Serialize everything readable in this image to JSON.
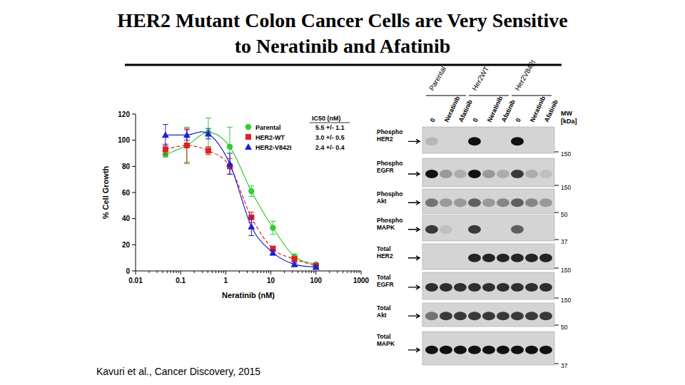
{
  "slide": {
    "title_lines": [
      "HER2 Mutant Colon Cancer Cells are Very Sensitive",
      "to Neratinib and Afatinib"
    ],
    "citation": "Kavuri et al., Cancer Discovery, 2015"
  },
  "chart_data": {
    "type": "scatter",
    "x_label": "Neratinib (nM)",
    "y_label": "% Cell Growth",
    "x": [
      0.046,
      0.137,
      0.41,
      1.23,
      3.7,
      11.1,
      33.3,
      100
    ],
    "xlim": [
      0.01,
      1000
    ],
    "ylim": [
      0,
      120
    ],
    "xticks": [
      0.01,
      0.1,
      1,
      10,
      100,
      1000
    ],
    "yticks": [
      0,
      20,
      40,
      60,
      80,
      100,
      120
    ],
    "log": "x",
    "grid": false,
    "legend": "top-right",
    "legend_header": "IC50 (nM)",
    "series": [
      {
        "name": "Parental",
        "color": "#33cc33",
        "marker": "circle",
        "line_style": "solid",
        "values": [
          89,
          96,
          106,
          95,
          61,
          33,
          11,
          5
        ],
        "errors": [
          2,
          14,
          11,
          15,
          4,
          5,
          2,
          1
        ],
        "ic50": "5.5 +/- 1.1"
      },
      {
        "name": "HER2-WT",
        "color": "#e02020",
        "marker": "square",
        "line_style": "dashed",
        "values": [
          93,
          96,
          92,
          80,
          41,
          17,
          9,
          4
        ],
        "errors": [
          4,
          13,
          3,
          6,
          4,
          2,
          2,
          1
        ],
        "ic50": "3.0 +/- 0.5"
      },
      {
        "name": "HER2-V842I",
        "color": "#2020d0",
        "marker": "triangle",
        "line_style": "solid",
        "values": [
          104,
          104,
          105,
          82,
          34,
          14,
          5,
          3
        ],
        "errors": [
          8,
          4,
          4,
          8,
          7,
          2,
          1,
          1
        ],
        "ic50": "2.4 +/- 0.4"
      }
    ]
  },
  "blot": {
    "lane_groups": [
      "Parental",
      "Her2WT",
      "Her2V842I"
    ],
    "lanes": [
      "0",
      "Neratinib",
      "Afatinib",
      "0",
      "Neratinib",
      "Afatinib",
      "0",
      "Neratinib",
      "Afatinib"
    ],
    "mw_header": "MW [kDa]",
    "rows": [
      {
        "label": "Phospho HER2",
        "mw": 150,
        "bands": [
          0.15,
          0,
          0,
          1,
          0,
          0,
          1,
          0,
          0
        ]
      },
      {
        "label": "Phospho EGFR",
        "mw": 150,
        "bands": [
          1,
          0.3,
          0.2,
          1,
          0.3,
          0.2,
          0.8,
          0.2,
          0.1
        ]
      },
      {
        "label": "Phospho Akt",
        "mw": 50,
        "bands": [
          0.5,
          0.3,
          0.3,
          0.6,
          0.3,
          0.4,
          0.6,
          0.4,
          0.3
        ]
      },
      {
        "label": "Phospho MAPK",
        "mw": 37,
        "bands": [
          0.8,
          0.1,
          0,
          0.8,
          0,
          0,
          0.6,
          0,
          0
        ]
      },
      {
        "label": "Total HER2",
        "mw": 150,
        "bands": [
          0,
          0,
          0,
          0.9,
          0.9,
          0.9,
          0.9,
          0.9,
          0.9
        ]
      },
      {
        "label": "Total EGFR",
        "mw": 150,
        "bands": [
          0.85,
          0.85,
          0.85,
          0.85,
          0.85,
          0.85,
          0.85,
          0.85,
          0.85
        ]
      },
      {
        "label": "Total Akt",
        "mw": 50,
        "bands": [
          0.5,
          0.8,
          0.8,
          0.8,
          0.8,
          0.8,
          0.8,
          0.8,
          0.8
        ]
      },
      {
        "label": "Total MAPK",
        "mw": 37,
        "bands": [
          1,
          1,
          1,
          1,
          1,
          1,
          1,
          1,
          1
        ]
      }
    ]
  }
}
